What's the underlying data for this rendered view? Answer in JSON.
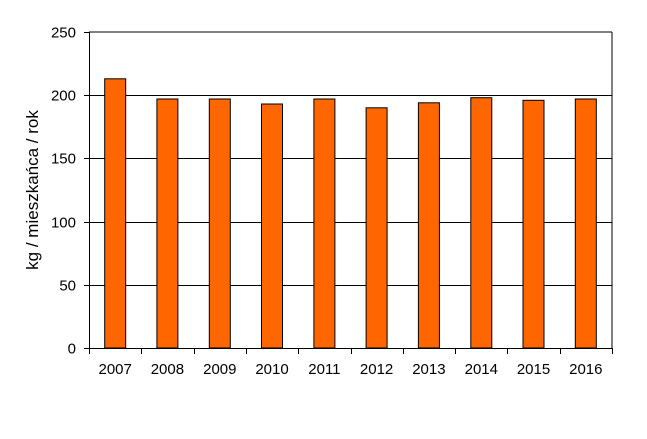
{
  "chart_data": {
    "type": "bar",
    "categories": [
      "2007",
      "2008",
      "2009",
      "2010",
      "2011",
      "2012",
      "2013",
      "2014",
      "2015",
      "2016"
    ],
    "values": [
      213,
      197,
      197,
      193,
      197,
      190,
      194,
      198,
      196,
      197
    ],
    "title": "",
    "xlabel": "",
    "ylabel": "kg / mieszkańca  / rok",
    "ylim": [
      0,
      250
    ],
    "yticks": [
      0,
      50,
      100,
      150,
      200,
      250
    ],
    "grid": true,
    "legend": "none",
    "colors": {
      "bar_fill": "#ff6600",
      "bar_stroke": "#000000",
      "gridline": "#000000",
      "background": "#ffffff"
    }
  }
}
